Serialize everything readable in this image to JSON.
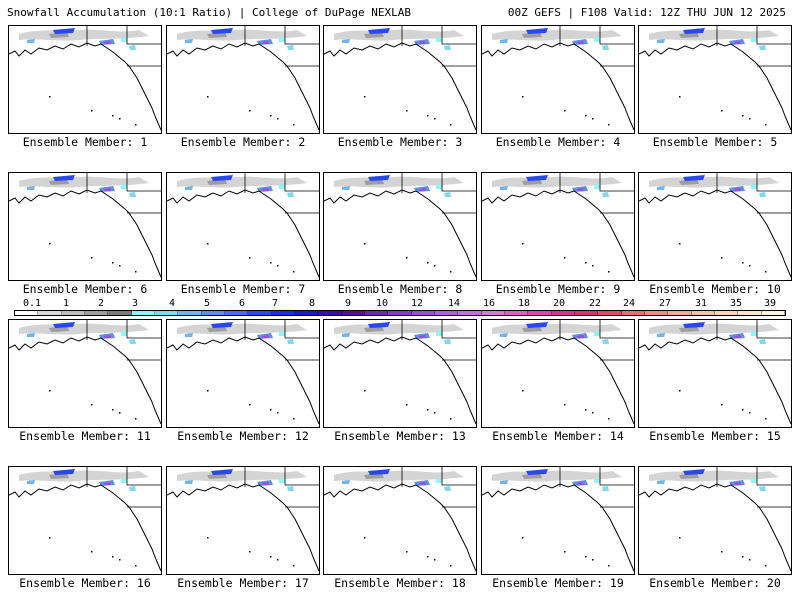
{
  "header": {
    "title_left": "Snowfall Accumulation (10:1 Ratio) | College of DuPage NEXLAB",
    "title_right": "00Z GEFS | F108 Valid: 12Z THU JUN 12 2025"
  },
  "members": [
    "Ensemble Member: 1",
    "Ensemble Member: 2",
    "Ensemble Member: 3",
    "Ensemble Member: 4",
    "Ensemble Member: 5",
    "Ensemble Member: 6",
    "Ensemble Member: 7",
    "Ensemble Member: 8",
    "Ensemble Member: 9",
    "Ensemble Member: 10",
    "Ensemble Member: 11",
    "Ensemble Member: 12",
    "Ensemble Member: 13",
    "Ensemble Member: 14",
    "Ensemble Member: 15",
    "Ensemble Member: 16",
    "Ensemble Member: 17",
    "Ensemble Member: 18",
    "Ensemble Member: 19",
    "Ensemble Member: 20"
  ],
  "colorbar": {
    "labels": [
      "0.1",
      "1",
      "2",
      "3",
      "4",
      "5",
      "6",
      "7",
      "8",
      "9",
      "10",
      "12",
      "14",
      "16",
      "18",
      "20",
      "22",
      "24",
      "27",
      "31",
      "35",
      "39"
    ],
    "colors": [
      "#ffffff",
      "#d9d9d9",
      "#bdbdbd",
      "#9e9e9e",
      "#7a7a7a",
      "#8ff5f5",
      "#7fd9f0",
      "#6fb6ee",
      "#5b8fea",
      "#4a6cf0",
      "#2a48ef",
      "#1a2ee8",
      "#1a18c8",
      "#3a10a0",
      "#551488",
      "#6e2a9e",
      "#8a3cb6",
      "#a04ecb",
      "#b35fd6",
      "#c46fdc",
      "#d27ad8",
      "#d962c2",
      "#d34da8",
      "#c93d8c",
      "#c93a6e",
      "#d2506a",
      "#df7272",
      "#ea8e8a",
      "#f2aa9c",
      "#f6c2ae",
      "#f9d6bd",
      "#fbe5cc",
      "#fdf3e2"
    ]
  }
}
